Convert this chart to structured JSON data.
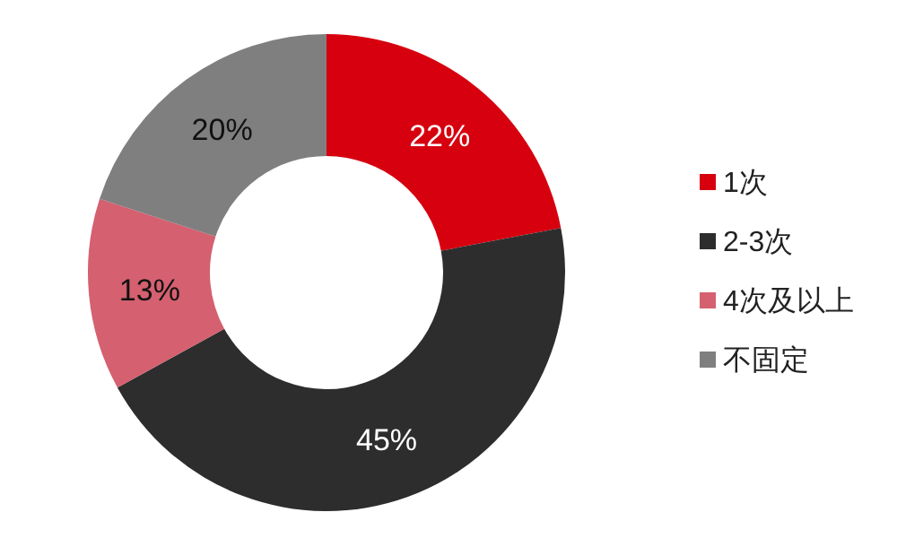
{
  "chart_data": {
    "type": "donut",
    "categories": [
      "1次",
      "2-3次",
      "4次及以上",
      "不固定"
    ],
    "values": [
      22,
      45,
      13,
      20
    ],
    "colors": [
      "#d6000f",
      "#2d2d2d",
      "#d46070",
      "#7f7f7f"
    ],
    "value_labels": [
      "22%",
      "45%",
      "13%",
      "20%"
    ],
    "legend": "right"
  }
}
